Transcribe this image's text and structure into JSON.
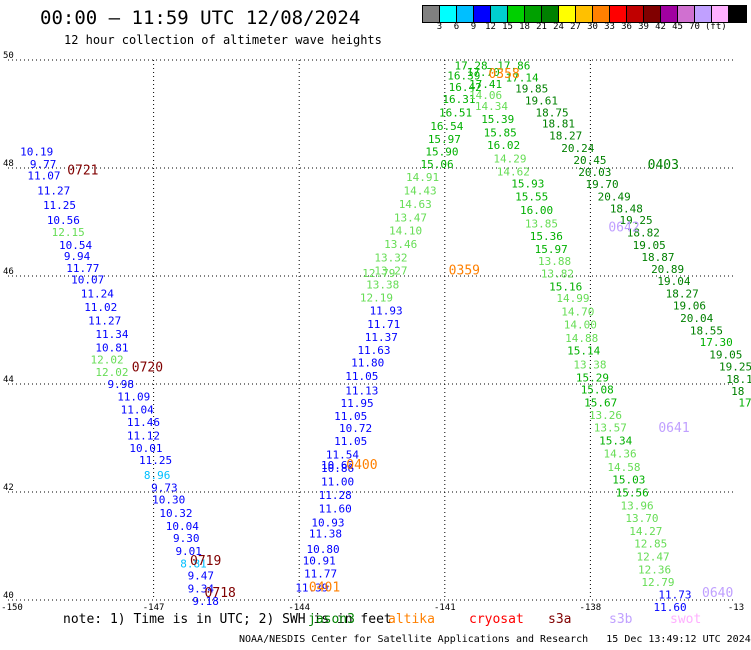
{
  "header": {
    "title": "00:00 – 11:59 UTC 12/08/2024",
    "subtitle": "12 hour collection of altimeter wave heights"
  },
  "colorbar": {
    "colors": [
      "#808080",
      "#00ffff",
      "#00bfff",
      "#0000ff",
      "#00cfcf",
      "#00d000",
      "#00a000",
      "#008000",
      "#ffff00",
      "#ffc000",
      "#ff8000",
      "#ff0000",
      "#c00000",
      "#800000",
      "#a000a0",
      "#d070d0",
      "#c0a0ff",
      "#ffb0ff",
      "#000000"
    ],
    "labels": [
      "3",
      "6",
      "9",
      "12",
      "15",
      "18",
      "21",
      "24",
      "27",
      "30",
      "33",
      "36",
      "39",
      "42",
      "45",
      "70"
    ],
    "unit": "(ft)"
  },
  "note": "note: 1) Time is in UTC; 2) SWH is in feet",
  "legend": [
    {
      "name": "jason3",
      "color": "#008000"
    },
    {
      "name": "altika",
      "color": "#ff8000"
    },
    {
      "name": "cryosat",
      "color": "#ff0000"
    },
    {
      "name": "s3a",
      "color": "#800000"
    },
    {
      "name": "s3b",
      "color": "#c0a0ff"
    },
    {
      "name": "swot",
      "color": "#ffb0ff"
    }
  ],
  "footer": "NOAA/NESDIS Center for Satellite Applications and Research   15 Dec 13:49:12 UTC 2024",
  "chart_data": {
    "type": "scatter",
    "xlim": [
      -150,
      -135
    ],
    "ylim": [
      40,
      50
    ],
    "x_ticks": [
      "-150",
      "-147",
      "-144",
      "-141",
      "-138",
      "-13"
    ],
    "y_ticks": [
      "40",
      "42",
      "44",
      "46",
      "48",
      "50"
    ],
    "grid": true,
    "time_labels": [
      {
        "text": "0721",
        "color": "#800000",
        "lon": -148.78,
        "lat": 47.88
      },
      {
        "text": "0720",
        "color": "#800000",
        "lon": -147.45,
        "lat": 44.23
      },
      {
        "text": "0719",
        "color": "#800000",
        "lon": -146.25,
        "lat": 40.65
      },
      {
        "text": "0718",
        "color": "#800000",
        "lon": -145.95,
        "lat": 40.06
      },
      {
        "text": "0400",
        "color": "#ff8000",
        "lon": -143.03,
        "lat": 42.43
      },
      {
        "text": "0401",
        "color": "#ff8000",
        "lon": -143.8,
        "lat": 40.16
      },
      {
        "text": "0358",
        "color": "#ff8000",
        "lon": -140.1,
        "lat": 49.67
      },
      {
        "text": "0359",
        "color": "#ff8000",
        "lon": -140.92,
        "lat": 46.03
      },
      {
        "text": "0642",
        "color": "#c0a0ff",
        "lon": -137.63,
        "lat": 46.82
      },
      {
        "text": "0641",
        "color": "#c0a0ff",
        "lon": -136.6,
        "lat": 43.11
      },
      {
        "text": "0640",
        "color": "#c0a0ff",
        "lon": -135.7,
        "lat": 40.06
      },
      {
        "text": "0403",
        "color": "#008000",
        "lon": -136.82,
        "lat": 47.98
      }
    ],
    "points": [
      {
        "v": "10.19",
        "lon": -149.75,
        "lat": 48.23
      },
      {
        "v": "9.77",
        "lon": -149.55,
        "lat": 48.0
      },
      {
        "v": "11.07",
        "lon": -149.6,
        "lat": 47.79
      },
      {
        "v": "11.27",
        "lon": -149.4,
        "lat": 47.51
      },
      {
        "v": "11.25",
        "lon": -149.28,
        "lat": 47.24
      },
      {
        "v": "10.56",
        "lon": -149.2,
        "lat": 46.96
      },
      {
        "v": "12.15",
        "lon": -149.1,
        "lat": 46.74
      },
      {
        "v": "10.54",
        "lon": -148.95,
        "lat": 46.5
      },
      {
        "v": "9.94",
        "lon": -148.85,
        "lat": 46.3
      },
      {
        "v": "11.77",
        "lon": -148.8,
        "lat": 46.07
      },
      {
        "v": "10.07",
        "lon": -148.7,
        "lat": 45.86
      },
      {
        "v": "11.24",
        "lon": -148.5,
        "lat": 45.6
      },
      {
        "v": "11.02",
        "lon": -148.43,
        "lat": 45.35
      },
      {
        "v": "11.27",
        "lon": -148.35,
        "lat": 45.1
      },
      {
        "v": "11.34",
        "lon": -148.2,
        "lat": 44.85
      },
      {
        "v": "10.81",
        "lon": -148.2,
        "lat": 44.6
      },
      {
        "v": "12.02",
        "lon": -148.3,
        "lat": 44.38
      },
      {
        "v": "12.02",
        "lon": -148.2,
        "lat": 44.15
      },
      {
        "v": "9.98",
        "lon": -147.95,
        "lat": 43.93
      },
      {
        "v": "11.09",
        "lon": -147.75,
        "lat": 43.69
      },
      {
        "v": "11.04",
        "lon": -147.68,
        "lat": 43.45
      },
      {
        "v": "11.46",
        "lon": -147.55,
        "lat": 43.22
      },
      {
        "v": "11.12",
        "lon": -147.55,
        "lat": 42.97
      },
      {
        "v": "10.01",
        "lon": -147.5,
        "lat": 42.74
      },
      {
        "v": "11.25",
        "lon": -147.3,
        "lat": 42.52
      },
      {
        "v": "8.96",
        "lon": -147.2,
        "lat": 42.24
      },
      {
        "v": "9.73",
        "lon": -147.05,
        "lat": 42.01
      },
      {
        "v": "10.30",
        "lon": -147.03,
        "lat": 41.79
      },
      {
        "v": "10.32",
        "lon": -146.88,
        "lat": 41.54
      },
      {
        "v": "10.04",
        "lon": -146.75,
        "lat": 41.3
      },
      {
        "v": "9.30",
        "lon": -146.6,
        "lat": 41.07
      },
      {
        "v": "9.01",
        "lon": -146.55,
        "lat": 40.83
      },
      {
        "v": "8.81",
        "lon": -146.45,
        "lat": 40.6
      },
      {
        "v": "9.47",
        "lon": -146.3,
        "lat": 40.38
      },
      {
        "v": "9.34",
        "lon": -146.3,
        "lat": 40.14
      },
      {
        "v": "9.18",
        "lon": -146.2,
        "lat": 39.91
      },
      {
        "v": "11.39",
        "lon": -144.08,
        "lat": 40.16
      },
      {
        "v": "11.77",
        "lon": -143.9,
        "lat": 40.42
      },
      {
        "v": "10.91",
        "lon": -143.93,
        "lat": 40.66
      },
      {
        "v": "10.80",
        "lon": -143.85,
        "lat": 40.87
      },
      {
        "v": "11.38",
        "lon": -143.8,
        "lat": 41.16
      },
      {
        "v": "10.93",
        "lon": -143.75,
        "lat": 41.36
      },
      {
        "v": "11.60",
        "lon": -143.6,
        "lat": 41.62
      },
      {
        "v": "11.28",
        "lon": -143.6,
        "lat": 41.87
      },
      {
        "v": "11.00",
        "lon": -143.55,
        "lat": 42.12
      },
      {
        "v": "10.86",
        "lon": -143.55,
        "lat": 42.37
      },
      {
        "v": "10.62",
        "lon": -143.55,
        "lat": 42.43
      },
      {
        "v": "11.54",
        "lon": -143.45,
        "lat": 42.62
      },
      {
        "v": "11.05",
        "lon": -143.28,
        "lat": 42.87
      },
      {
        "v": "10.72",
        "lon": -143.18,
        "lat": 43.11
      },
      {
        "v": "11.05",
        "lon": -143.28,
        "lat": 43.33
      },
      {
        "v": "11.95",
        "lon": -143.15,
        "lat": 43.57
      },
      {
        "v": "11.13",
        "lon": -143.05,
        "lat": 43.81
      },
      {
        "v": "11.05",
        "lon": -143.05,
        "lat": 44.07
      },
      {
        "v": "11.80",
        "lon": -142.93,
        "lat": 44.32
      },
      {
        "v": "11.63",
        "lon": -142.8,
        "lat": 44.56
      },
      {
        "v": "11.37",
        "lon": -142.65,
        "lat": 44.8
      },
      {
        "v": "11.71",
        "lon": -142.6,
        "lat": 45.04
      },
      {
        "v": "11.93",
        "lon": -142.55,
        "lat": 45.29
      },
      {
        "v": "12.19",
        "lon": -142.75,
        "lat": 45.53
      },
      {
        "v": "13.38",
        "lon": -142.62,
        "lat": 45.77
      },
      {
        "v": "12.79",
        "lon": -142.7,
        "lat": 45.98
      },
      {
        "v": "13.27",
        "lon": -142.45,
        "lat": 46.03
      },
      {
        "v": "13.32",
        "lon": -142.45,
        "lat": 46.27
      },
      {
        "v": "13.46",
        "lon": -142.25,
        "lat": 46.52
      },
      {
        "v": "14.10",
        "lon": -142.15,
        "lat": 46.77
      },
      {
        "v": "13.47",
        "lon": -142.05,
        "lat": 47.01
      },
      {
        "v": "14.63",
        "lon": -141.95,
        "lat": 47.26
      },
      {
        "v": "14.43",
        "lon": -141.85,
        "lat": 47.51
      },
      {
        "v": "14.91",
        "lon": -141.8,
        "lat": 47.76
      },
      {
        "v": "15.06",
        "lon": -141.5,
        "lat": 48.0
      },
      {
        "v": "15.90",
        "lon": -141.4,
        "lat": 48.23
      },
      {
        "v": "15.97",
        "lon": -141.35,
        "lat": 48.46
      },
      {
        "v": "16.54",
        "lon": -141.3,
        "lat": 48.7
      },
      {
        "v": "16.51",
        "lon": -141.12,
        "lat": 48.95
      },
      {
        "v": "16.31",
        "lon": -141.05,
        "lat": 49.2
      },
      {
        "v": "16.42",
        "lon": -140.92,
        "lat": 49.43
      },
      {
        "v": "16.39",
        "lon": -140.95,
        "lat": 49.64
      },
      {
        "v": "17.28",
        "lon": -140.8,
        "lat": 49.82
      },
      {
        "v": "17.70",
        "lon": -140.55,
        "lat": 49.7
      },
      {
        "v": "17.41",
        "lon": -140.5,
        "lat": 49.48
      },
      {
        "v": "14.06",
        "lon": -140.5,
        "lat": 49.28
      },
      {
        "v": "14.34",
        "lon": -140.38,
        "lat": 49.07
      },
      {
        "v": "15.39",
        "lon": -140.25,
        "lat": 48.83
      },
      {
        "v": "15.85",
        "lon": -140.2,
        "lat": 48.58
      },
      {
        "v": "16.02",
        "lon": -140.13,
        "lat": 48.35
      },
      {
        "v": "14.29",
        "lon": -140.0,
        "lat": 48.1
      },
      {
        "v": "14.62",
        "lon": -139.93,
        "lat": 47.86
      },
      {
        "v": "15.93",
        "lon": -139.63,
        "lat": 47.64
      },
      {
        "v": "15.55",
        "lon": -139.55,
        "lat": 47.4
      },
      {
        "v": "16.00",
        "lon": -139.45,
        "lat": 47.15
      },
      {
        "v": "13.85",
        "lon": -139.35,
        "lat": 46.9
      },
      {
        "v": "15.36",
        "lon": -139.25,
        "lat": 46.67
      },
      {
        "v": "15.97",
        "lon": -139.15,
        "lat": 46.43
      },
      {
        "v": "13.88",
        "lon": -139.08,
        "lat": 46.2
      },
      {
        "v": "13.82",
        "lon": -139.02,
        "lat": 45.97
      },
      {
        "v": "15.16",
        "lon": -138.85,
        "lat": 45.73
      },
      {
        "v": "14.99",
        "lon": -138.7,
        "lat": 45.52
      },
      {
        "v": "14.70",
        "lon": -138.6,
        "lat": 45.27
      },
      {
        "v": "14.00",
        "lon": -138.55,
        "lat": 45.03
      },
      {
        "v": "14.88",
        "lon": -138.52,
        "lat": 44.78
      },
      {
        "v": "15.14",
        "lon": -138.48,
        "lat": 44.55
      },
      {
        "v": "13.38",
        "lon": -138.35,
        "lat": 44.29
      },
      {
        "v": "15.29",
        "lon": -138.3,
        "lat": 44.05
      },
      {
        "v": "15.08",
        "lon": -138.2,
        "lat": 43.82
      },
      {
        "v": "15.67",
        "lon": -138.13,
        "lat": 43.58
      },
      {
        "v": "13.26",
        "lon": -138.03,
        "lat": 43.35
      },
      {
        "v": "13.57",
        "lon": -137.93,
        "lat": 43.12
      },
      {
        "v": "15.34",
        "lon": -137.82,
        "lat": 42.88
      },
      {
        "v": "14.36",
        "lon": -137.73,
        "lat": 42.64
      },
      {
        "v": "14.58",
        "lon": -137.65,
        "lat": 42.39
      },
      {
        "v": "15.03",
        "lon": -137.55,
        "lat": 42.16
      },
      {
        "v": "15.56",
        "lon": -137.48,
        "lat": 41.92
      },
      {
        "v": "13.96",
        "lon": -137.38,
        "lat": 41.68
      },
      {
        "v": "13.70",
        "lon": -137.28,
        "lat": 41.44
      },
      {
        "v": "14.27",
        "lon": -137.2,
        "lat": 41.2
      },
      {
        "v": "12.85",
        "lon": -137.1,
        "lat": 40.97
      },
      {
        "v": "12.47",
        "lon": -137.05,
        "lat": 40.73
      },
      {
        "v": "12.36",
        "lon": -137.02,
        "lat": 40.49
      },
      {
        "v": "12.79",
        "lon": -136.95,
        "lat": 40.26
      },
      {
        "v": "11.73",
        "lon": -136.6,
        "lat": 40.03
      },
      {
        "v": "11.60",
        "lon": -136.7,
        "lat": 39.8
      },
      {
        "v": "17.86",
        "lon": -139.92,
        "lat": 49.82
      },
      {
        "v": "17.14",
        "lon": -139.75,
        "lat": 49.6
      },
      {
        "v": "19.85",
        "lon": -139.55,
        "lat": 49.4
      },
      {
        "v": "19.61",
        "lon": -139.35,
        "lat": 49.18
      },
      {
        "v": "18.75",
        "lon": -139.13,
        "lat": 48.95
      },
      {
        "v": "18.81",
        "lon": -139.0,
        "lat": 48.75
      },
      {
        "v": "18.27",
        "lon": -138.85,
        "lat": 48.53
      },
      {
        "v": "20.24",
        "lon": -138.6,
        "lat": 48.3
      },
      {
        "v": "20.45",
        "lon": -138.35,
        "lat": 48.07
      },
      {
        "v": "20.03",
        "lon": -138.25,
        "lat": 47.85
      },
      {
        "v": "19.70",
        "lon": -138.1,
        "lat": 47.63
      },
      {
        "v": "20.49",
        "lon": -137.85,
        "lat": 47.4
      },
      {
        "v": "18.48",
        "lon": -137.6,
        "lat": 47.18
      },
      {
        "v": "19.25",
        "lon": -137.4,
        "lat": 46.96
      },
      {
        "v": "18.82",
        "lon": -137.25,
        "lat": 46.73
      },
      {
        "v": "19.05",
        "lon": -137.13,
        "lat": 46.5
      },
      {
        "v": "18.87",
        "lon": -136.95,
        "lat": 46.28
      },
      {
        "v": "20.89",
        "lon": -136.75,
        "lat": 46.06
      },
      {
        "v": "19.04",
        "lon": -136.62,
        "lat": 45.83
      },
      {
        "v": "18.27",
        "lon": -136.45,
        "lat": 45.6
      },
      {
        "v": "19.06",
        "lon": -136.3,
        "lat": 45.38
      },
      {
        "v": "20.04",
        "lon": -136.15,
        "lat": 45.15
      },
      {
        "v": "18.55",
        "lon": -135.95,
        "lat": 44.92
      },
      {
        "v": "17.30",
        "lon": -135.75,
        "lat": 44.7
      },
      {
        "v": "19.05",
        "lon": -135.55,
        "lat": 44.47
      },
      {
        "v": "19.25",
        "lon": -135.35,
        "lat": 44.25
      },
      {
        "v": "18.1",
        "lon": -135.2,
        "lat": 44.02
      },
      {
        "v": "18",
        "lon": -135.1,
        "lat": 43.8
      },
      {
        "v": "17",
        "lon": -134.95,
        "lat": 43.58
      }
    ]
  }
}
